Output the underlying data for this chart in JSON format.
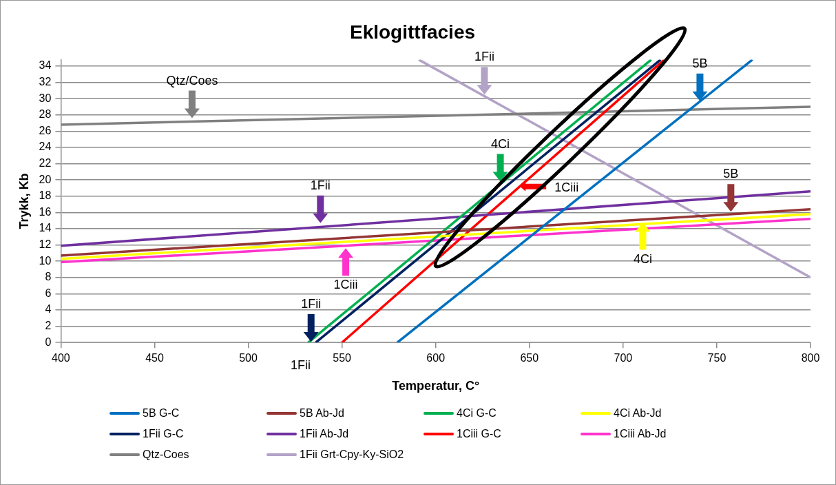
{
  "chart_data": {
    "type": "line",
    "title": "Eklogittfacies",
    "xlabel": "Temperatur, C°",
    "ylabel": "Trykk, Kb",
    "series": [
      {
        "name": "5B G-C",
        "color": "#0070c0",
        "x": [
          579.5,
          769
        ],
        "values": [
          0,
          34.8
        ]
      },
      {
        "name": "5B Ab-Jd",
        "color": "#943634",
        "x": [
          400,
          800
        ],
        "values": [
          10.7,
          16.4
        ]
      },
      {
        "name": "4Ci G-C",
        "color": "#00b050",
        "x": [
          532,
          715
        ],
        "values": [
          0,
          34.8
        ]
      },
      {
        "name": "4Ci Ab-Jd",
        "color": "#ffff00",
        "x": [
          400,
          800
        ],
        "values": [
          10.3,
          15.8
        ]
      },
      {
        "name": "1Fii G-C",
        "color": "#002060",
        "x": [
          536,
          720
        ],
        "values": [
          0,
          34.8
        ]
      },
      {
        "name": "1Fii Ab-Jd",
        "color": "#7030a0",
        "x": [
          400,
          800
        ],
        "values": [
          11.9,
          18.6
        ]
      },
      {
        "name": "1Ciii G-C",
        "color": "#ff0000",
        "x": [
          550,
          722
        ],
        "values": [
          0,
          34.8
        ]
      },
      {
        "name": "1Ciii Ab-Jd",
        "color": "#ff33cc",
        "x": [
          400,
          800
        ],
        "values": [
          9.9,
          15.2
        ]
      },
      {
        "name": "Qtz-Coes",
        "color": "#808080",
        "x": [
          400,
          800
        ],
        "values": [
          26.8,
          29.0
        ]
      },
      {
        "name": "1Fii Grt-Cpy-Ky-SiO2",
        "color": "#b3a2c7",
        "x": [
          591,
          800
        ],
        "values": [
          34.8,
          8.0
        ]
      }
    ],
    "xlim": [
      400,
      800
    ],
    "xticks": [
      400,
      450,
      500,
      550,
      600,
      650,
      700,
      750,
      800
    ],
    "ylim": [
      0,
      34.8
    ],
    "yticks": [
      0,
      2,
      4,
      6,
      8,
      10,
      12,
      14,
      16,
      18,
      20,
      22,
      24,
      26,
      28,
      30,
      32,
      34
    ],
    "grid": "y",
    "legend": "bottom",
    "marker": "none",
    "line_style": "solid",
    "annotations": [
      {
        "text": "Qtz/Coes",
        "x": 470,
        "y": 27.6
      },
      {
        "text": "1Fii",
        "x": 626,
        "y": 30.5
      },
      {
        "text": "5B",
        "x": 741,
        "y": 29.7
      },
      {
        "text": "4Ci",
        "x": 634.5,
        "y": 19.8
      },
      {
        "text": "1Ciii",
        "x": 645,
        "y": 19.2
      },
      {
        "text": "5B",
        "x": 757.5,
        "y": 16.1
      },
      {
        "text": "1Fii",
        "x": 538.5,
        "y": 14.7
      },
      {
        "text": "1Ciii",
        "x": 552,
        "y": 11.6
      },
      {
        "text": "4Ci",
        "x": 710.5,
        "y": 14.8
      },
      {
        "text": "1Fii",
        "x": 533.5,
        "y": 0.1
      },
      {
        "text": "1Fii",
        "x": 536,
        "y": 0
      }
    ]
  }
}
